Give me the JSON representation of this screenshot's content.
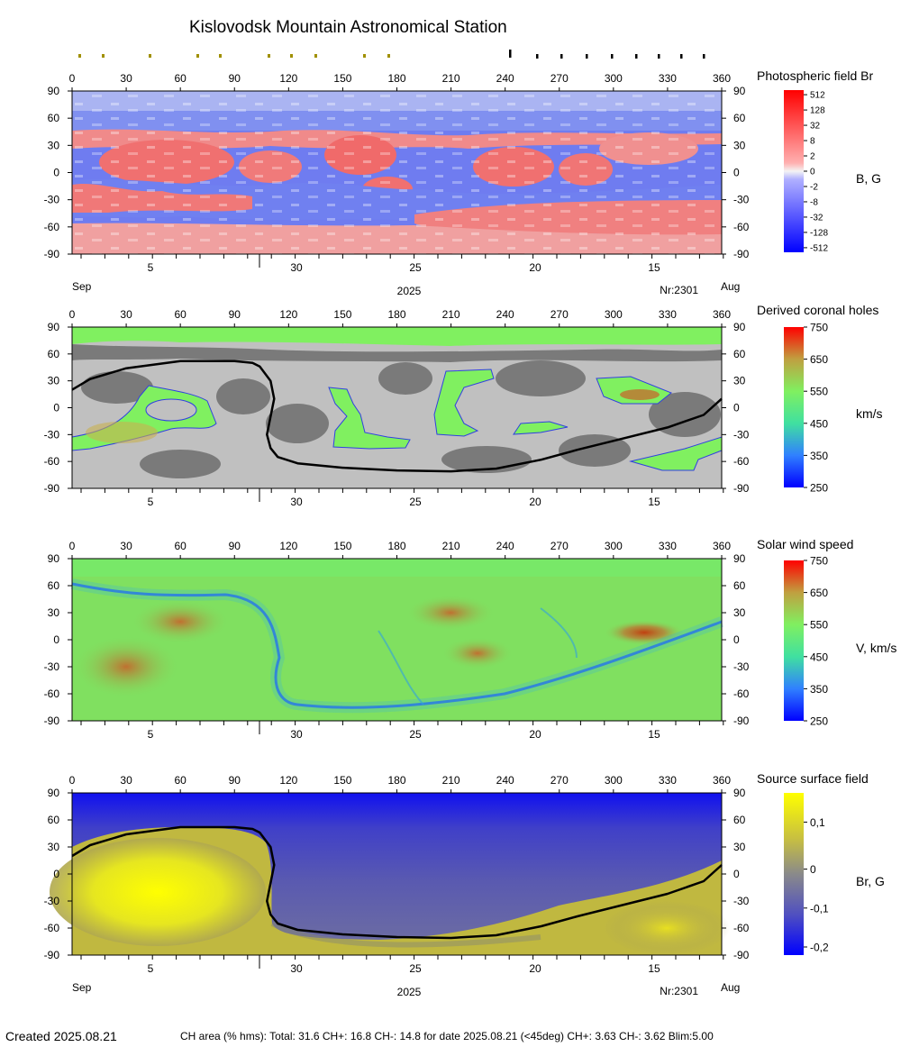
{
  "header": {
    "title": "Kislovodsk Mountain Astronomical Station"
  },
  "x_ticks": [
    "0",
    "30",
    "60",
    "90",
    "120",
    "150",
    "180",
    "210",
    "240",
    "270",
    "300",
    "330",
    "360"
  ],
  "y_ticks": [
    "90",
    "60",
    "30",
    "0",
    "-30",
    "-60",
    "-90"
  ],
  "date_ticks": [
    "5",
    "30",
    "25",
    "20",
    "15"
  ],
  "month_left": "Sep",
  "month_right": "Aug",
  "year_label": "2025",
  "rotation_label": "Nr:2301",
  "colors": {
    "hole_green": "#80f060",
    "grey_dark": "#7a7a7a",
    "grey_light": "#c0c0c0",
    "neutral_line": "#000000",
    "blue_pole": "#1010f0",
    "yellow": "#f5f510"
  },
  "panels": [
    {
      "id": "photospheric",
      "title": "Photospheric field Br",
      "unit": "B, G",
      "scale": [
        "512",
        "128",
        "32",
        "8",
        "2",
        "0",
        "-2",
        "-8",
        "-32",
        "-128",
        "-512"
      ]
    },
    {
      "id": "coronal-holes",
      "title": "Derived coronal holes",
      "unit": "km/s",
      "scale": [
        "750",
        "650",
        "550",
        "450",
        "350",
        "250"
      ]
    },
    {
      "id": "solar-wind",
      "title": "Solar wind speed",
      "unit": "V, km/s",
      "scale": [
        "750",
        "650",
        "550",
        "450",
        "350",
        "250"
      ]
    },
    {
      "id": "source-surface",
      "title": "Source surface field",
      "unit": "Br, G",
      "scale": [
        "0,1",
        "0",
        "-0,1",
        "-0,2"
      ]
    }
  ],
  "footer": {
    "created": "Created  2025.08.21",
    "stats": "CH area (% hms): Total: 31.6 CH+: 16.8    CH-: 14.8 for date 2025.08.21 (<45deg) CH+: 3.63    CH-: 3.62 Blim:5.00"
  },
  "chart_data": [
    {
      "type": "heatmap",
      "title": "Photospheric field Br",
      "xlabel": "",
      "ylabel": "",
      "xlim": [
        0,
        360
      ],
      "ylim": [
        -90,
        90
      ],
      "colorbar_label": "B, G",
      "colorbar_ticks": [
        512,
        128,
        32,
        8,
        2,
        0,
        -2,
        -8,
        -32,
        -128,
        -512
      ]
    },
    {
      "type": "heatmap",
      "title": "Derived coronal holes",
      "xlim": [
        0,
        360
      ],
      "ylim": [
        -90,
        90
      ],
      "colorbar_label": "km/s",
      "colorbar_ticks": [
        750,
        650,
        550,
        450,
        350,
        250
      ],
      "neutral_line": [
        [
          0,
          20
        ],
        [
          10,
          32
        ],
        [
          30,
          44
        ],
        [
          60,
          52
        ],
        [
          90,
          52
        ],
        [
          100,
          50
        ],
        [
          104,
          46
        ],
        [
          110,
          30
        ],
        [
          112,
          10
        ],
        [
          110,
          -10
        ],
        [
          108,
          -30
        ],
        [
          110,
          -45
        ],
        [
          114,
          -55
        ],
        [
          125,
          -62
        ],
        [
          150,
          -67
        ],
        [
          180,
          -70
        ],
        [
          210,
          -71
        ],
        [
          235,
          -68
        ],
        [
          260,
          -58
        ],
        [
          280,
          -47
        ],
        [
          300,
          -37
        ],
        [
          330,
          -22
        ],
        [
          350,
          -8
        ],
        [
          360,
          10
        ]
      ]
    },
    {
      "type": "heatmap",
      "title": "Solar wind speed",
      "xlim": [
        0,
        360
      ],
      "ylim": [
        -90,
        90
      ],
      "colorbar_label": "V, km/s",
      "colorbar_ticks": [
        750,
        650,
        550,
        450,
        350,
        250
      ]
    },
    {
      "type": "heatmap",
      "title": "Source surface field",
      "xlim": [
        0,
        360
      ],
      "ylim": [
        -90,
        90
      ],
      "colorbar_label": "Br, G",
      "colorbar_ticks": [
        0.1,
        0,
        -0.1,
        -0.2
      ],
      "neutral_line": [
        [
          0,
          20
        ],
        [
          10,
          32
        ],
        [
          30,
          44
        ],
        [
          60,
          52
        ],
        [
          90,
          52
        ],
        [
          100,
          50
        ],
        [
          104,
          46
        ],
        [
          110,
          30
        ],
        [
          112,
          10
        ],
        [
          110,
          -10
        ],
        [
          108,
          -30
        ],
        [
          110,
          -45
        ],
        [
          114,
          -55
        ],
        [
          125,
          -62
        ],
        [
          150,
          -67
        ],
        [
          180,
          -70
        ],
        [
          210,
          -71
        ],
        [
          235,
          -68
        ],
        [
          260,
          -58
        ],
        [
          280,
          -47
        ],
        [
          300,
          -37
        ],
        [
          330,
          -22
        ],
        [
          350,
          -8
        ],
        [
          360,
          10
        ]
      ]
    }
  ]
}
